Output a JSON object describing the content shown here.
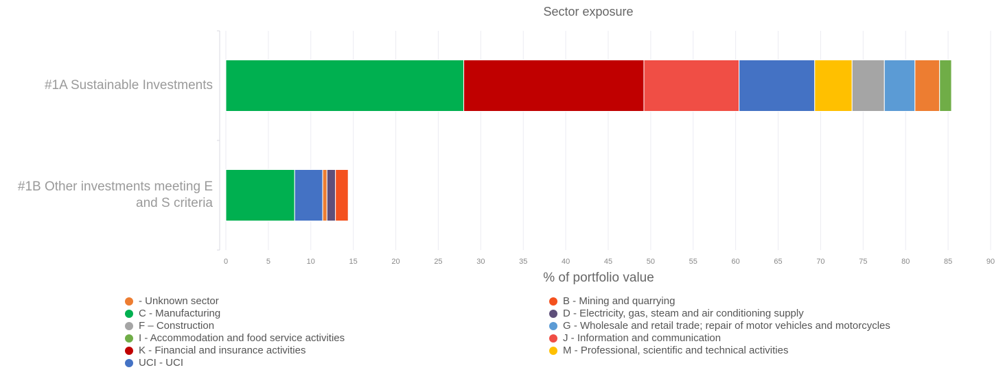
{
  "chart_data": {
    "type": "stacked_barh",
    "title": "Sector exposure",
    "x_label": "% of portfolio value",
    "categories": [
      "#1A Sustainable Investments",
      "#1B Other investments meeting E and S criteria"
    ],
    "series": [
      {
        "name": "C - Manufacturing",
        "color": "#00B050",
        "values": [
          28.0,
          8.1
        ]
      },
      {
        "name": "K - Financial and insurance activities",
        "color": "#C00000",
        "values": [
          21.2,
          null
        ]
      },
      {
        "name": "J - Information and communication",
        "color": "#F04E45",
        "values": [
          11.2,
          null
        ]
      },
      {
        "name": "UCI - UCI",
        "color": "#4472C4",
        "values": [
          8.9,
          3.3
        ]
      },
      {
        "name": "M - Professional, scientific and technical activities",
        "color": "#FFC000",
        "values": [
          4.4,
          null
        ]
      },
      {
        "name": "F – Construction",
        "color": "#A5A5A5",
        "values": [
          3.8,
          null
        ]
      },
      {
        "name": "G - Wholesale and retail trade; repair of motor vehicles and motorcycles",
        "color": "#5B9BD5",
        "values": [
          3.6,
          null
        ]
      },
      {
        "name": " - Unknown sector",
        "color": "#ED7D31",
        "values": [
          2.9,
          0.5
        ]
      },
      {
        "name": "D - Electricity, gas, steam and air conditioning supply",
        "color": "#5E4F7A",
        "values": [
          null,
          1.0
        ]
      },
      {
        "name": "B - Mining and quarrying",
        "color": "#F4511E",
        "values": [
          null,
          1.5
        ]
      },
      {
        "name": "I - Accommodation and food service activities",
        "color": "#70AD47",
        "values": [
          1.4,
          null
        ]
      }
    ],
    "xlim": [
      0,
      90
    ],
    "xticks": [
      0,
      5,
      10,
      15,
      20,
      25,
      30,
      35,
      40,
      45,
      50,
      55,
      60,
      65,
      70,
      75,
      80,
      85,
      90
    ],
    "grid": true
  }
}
